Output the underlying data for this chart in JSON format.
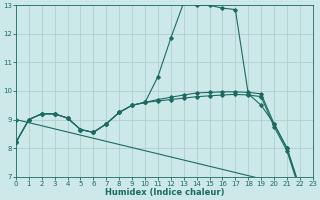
{
  "xlabel": "Humidex (Indice chaleur)",
  "xlim": [
    0,
    23
  ],
  "ylim": [
    7,
    13
  ],
  "yticks": [
    7,
    8,
    9,
    10,
    11,
    12,
    13
  ],
  "xticks": [
    0,
    1,
    2,
    3,
    4,
    5,
    6,
    7,
    8,
    9,
    10,
    11,
    12,
    13,
    14,
    15,
    16,
    17,
    18,
    19,
    20,
    21,
    22,
    23
  ],
  "bg_color": "#cde8e8",
  "grid_color": "#aecece",
  "line_color": "#1b6b62",
  "curves": [
    {
      "x": [
        0,
        1,
        2,
        3,
        4,
        5,
        6,
        7,
        8,
        9,
        10,
        11,
        12,
        13,
        14,
        15,
        16,
        17,
        18,
        19,
        20,
        21,
        22
      ],
      "y": [
        8.2,
        9.0,
        9.2,
        9.2,
        9.05,
        8.65,
        8.55,
        8.85,
        9.25,
        9.5,
        9.6,
        10.5,
        11.85,
        13.1,
        13.0,
        13.0,
        12.9,
        12.85,
        9.9,
        9.5,
        8.85,
        8.0,
        6.6
      ]
    },
    {
      "x": [
        0,
        1,
        2,
        3,
        4,
        5,
        6,
        7,
        8,
        9,
        10,
        11,
        12,
        13,
        14,
        15,
        16,
        17,
        18,
        19,
        20,
        21,
        22
      ],
      "y": [
        8.2,
        9.0,
        9.2,
        9.2,
        9.05,
        8.65,
        8.55,
        8.85,
        9.25,
        9.5,
        9.6,
        9.7,
        9.78,
        9.86,
        9.93,
        9.95,
        9.97,
        9.97,
        9.95,
        9.9,
        8.85,
        8.0,
        6.6
      ]
    },
    {
      "x": [
        0,
        1,
        2,
        3,
        4,
        5,
        6,
        7,
        8,
        9,
        10,
        11,
        12,
        13,
        14,
        15,
        16,
        17,
        18,
        19,
        20,
        21,
        22
      ],
      "y": [
        8.2,
        9.0,
        9.2,
        9.2,
        9.05,
        8.65,
        8.55,
        8.85,
        9.25,
        9.5,
        9.6,
        9.65,
        9.7,
        9.75,
        9.8,
        9.83,
        9.86,
        9.88,
        9.86,
        9.8,
        8.75,
        7.9,
        6.5
      ]
    },
    {
      "x": [
        0,
        22
      ],
      "y": [
        9.0,
        6.6
      ]
    }
  ]
}
